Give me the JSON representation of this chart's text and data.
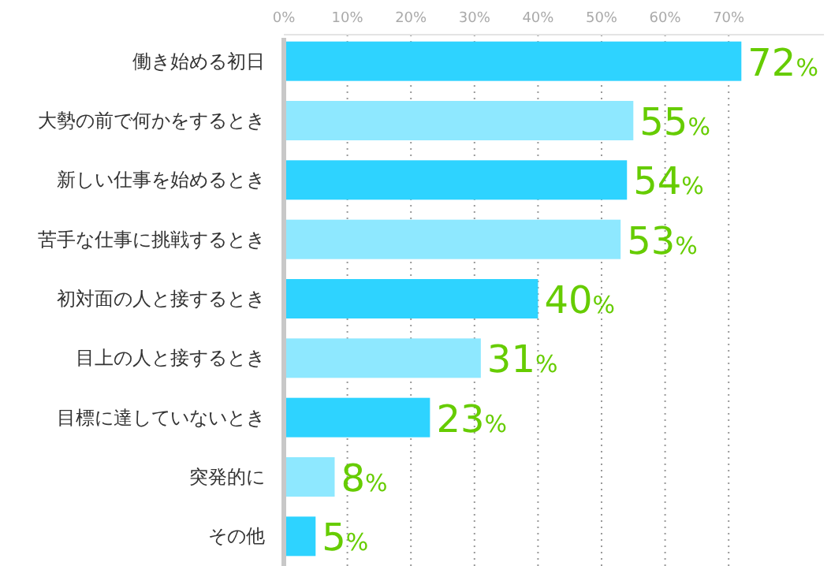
{
  "chart_data": {
    "type": "bar",
    "orientation": "horizontal",
    "categories": [
      "働き始める初日",
      "大勢の前で何かをするとき",
      "新しい仕事を始めるとき",
      "苦手な仕事に挑戦するとき",
      "初対面の人と接するとき",
      "目上の人と接するとき",
      "目標に達していないとき",
      "突発的に",
      "その他"
    ],
    "values": [
      72,
      55,
      54,
      53,
      40,
      31,
      23,
      8,
      5
    ],
    "colors": [
      "#2ed3ff",
      "#8ee8ff",
      "#2ed3ff",
      "#8ee8ff",
      "#2ed3ff",
      "#8ee8ff",
      "#2ed3ff",
      "#8ee8ff",
      "#2ed3ff"
    ],
    "value_labels": [
      "72%",
      "55%",
      "54%",
      "53%",
      "40%",
      "31%",
      "23%",
      "8%",
      "5%"
    ],
    "xticks": [
      {
        "value": 0,
        "label": "0%"
      },
      {
        "value": 10,
        "label": "10%"
      },
      {
        "value": 20,
        "label": "20%"
      },
      {
        "value": 30,
        "label": "30%"
      },
      {
        "value": 40,
        "label": "40%"
      },
      {
        "value": 50,
        "label": "50%"
      },
      {
        "value": 60,
        "label": "60%"
      },
      {
        "value": 70,
        "label": "70%"
      }
    ],
    "xlim": [
      0,
      85
    ],
    "grid": "x"
  }
}
